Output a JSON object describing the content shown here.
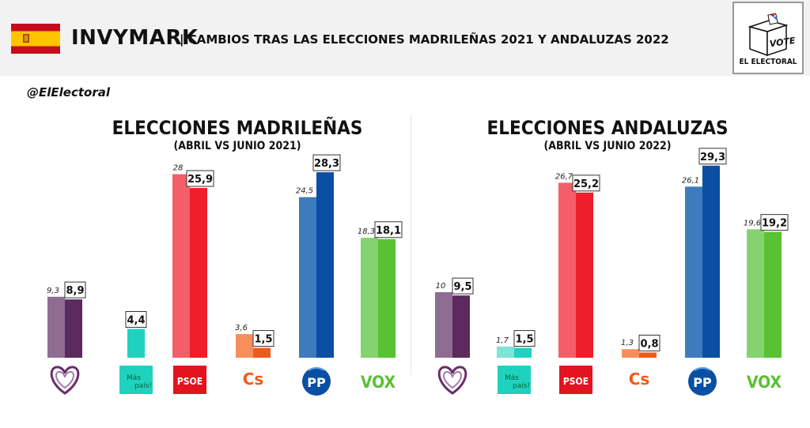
{
  "header": {
    "brand": "INVYMARK",
    "subtitle": "| CAMBIOS TRAS LAS ELECCIONES MADRILEÑAS 2021 Y ANDALUZAS 2022",
    "flag_colors": {
      "red": "#c60b1e",
      "yellow": "#ffc400"
    },
    "logo": {
      "vote_text": "VOTE",
      "caption": "EL ELECTORAL"
    }
  },
  "handle": "@ElElectoral",
  "parties": [
    {
      "id": "up",
      "icon": "heart-logo-icon",
      "color_prev": "#8f6d93",
      "color_curr": "#5c2a5e"
    },
    {
      "id": "mas",
      "icon": "mas-pais-logo-icon",
      "logo_text_1": "Más",
      "logo_text_2": "país!",
      "color_prev": "#7fe3d5",
      "color_curr": "#1fd2c0"
    },
    {
      "id": "psoe",
      "icon": "psoe-logo-icon",
      "logo_text": "PSOE",
      "color_prev": "#f45e69",
      "color_curr": "#ee1e2b"
    },
    {
      "id": "cs",
      "icon": "cs-logo-icon",
      "logo_text": "Cs",
      "color_prev": "#f68f5c",
      "color_curr": "#ef5b1c"
    },
    {
      "id": "pp",
      "icon": "pp-logo-icon",
      "logo_text": "PP",
      "color_prev": "#3e7bbd",
      "color_curr": "#0a4fa2"
    },
    {
      "id": "vox",
      "icon": "vox-logo-icon",
      "logo_text": "VOX",
      "color_prev": "#85d36f",
      "color_curr": "#59c134"
    }
  ],
  "chart_data": [
    {
      "type": "bar",
      "title": "ELECCIONES MADRILEÑAS",
      "subtitle": "(ABRIL VS JUNIO 2021)",
      "categories": [
        "up",
        "mas",
        "psoe",
        "cs",
        "pp",
        "vox"
      ],
      "series": [
        {
          "values": [
            9.3,
            null,
            28,
            3.6,
            24.5,
            18.3
          ],
          "labels": [
            "9,3",
            "",
            "28",
            "3,6",
            "24,5",
            "18,3"
          ]
        },
        {
          "values": [
            8.9,
            4.4,
            25.9,
            1.5,
            28.3,
            18.1
          ],
          "labels": [
            "8,9",
            "4,4",
            "25,9",
            "1,5",
            "28,3",
            "18,1"
          ]
        }
      ]
    },
    {
      "type": "bar",
      "title": "ELECCIONES ANDALUZAS",
      "subtitle": "(ABRIL VS JUNIO 2022)",
      "categories": [
        "up",
        "mas",
        "psoe",
        "cs",
        "pp",
        "vox"
      ],
      "series": [
        {
          "values": [
            10,
            1.7,
            26.7,
            1.3,
            26.1,
            19.6
          ],
          "labels": [
            "10",
            "1,7",
            "26,7",
            "1,3",
            "26,1",
            "19,6"
          ]
        },
        {
          "values": [
            9.5,
            1.5,
            25.2,
            0.8,
            29.3,
            19.2
          ],
          "labels": [
            "9,5",
            "1,5",
            "25,2",
            "0,8",
            "29,3",
            "19,2"
          ]
        }
      ]
    }
  ]
}
